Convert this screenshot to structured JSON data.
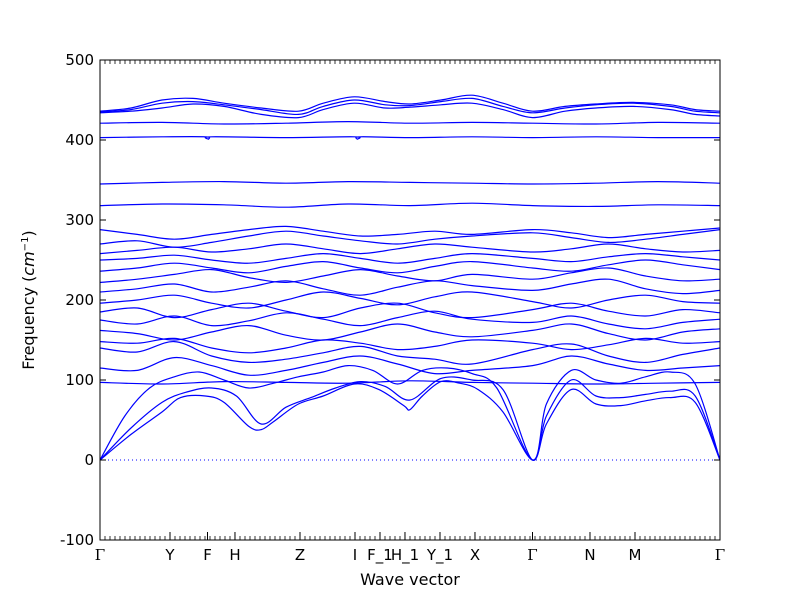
{
  "chart_data": {
    "type": "line",
    "title": "",
    "xlabel": "Wave vector",
    "ylabel_text": "Frequency (",
    "ylabel_unit": "cm",
    "ylabel_exp": "−1",
    "ylabel_close": ")",
    "ylim": [
      -100,
      500
    ],
    "yticks": [
      -100,
      0,
      100,
      200,
      300,
      400,
      500
    ],
    "xlim": [
      0,
      1
    ],
    "xticks": [
      {
        "label": "Γ",
        "x": 0.0
      },
      {
        "label": "Y",
        "x": 0.1129
      },
      {
        "label": "F",
        "x": 0.1734
      },
      {
        "label": "H",
        "x": 0.2177
      },
      {
        "label": "Z",
        "x": 0.3226
      },
      {
        "label": "I",
        "x": 0.4113
      },
      {
        "label": "F_1",
        "x": 0.4516
      },
      {
        "label": "H_1",
        "x": 0.4919
      },
      {
        "label": "Y_1",
        "x": 0.5484
      },
      {
        "label": "X",
        "x": 0.6048
      },
      {
        "label": "Γ",
        "x": 0.6976
      },
      {
        "label": "N",
        "x": 0.7903
      },
      {
        "label": "M",
        "x": 0.8629
      },
      {
        "label": "Γ",
        "x": 1.0
      }
    ],
    "zero_line": {
      "y": 0,
      "style": "dotted"
    },
    "line_color": "#0000ff",
    "series": [
      {
        "x": [
          0,
          0.05,
          0.1,
          0.13,
          0.17,
          0.2,
          0.24,
          0.26,
          0.28,
          0.32,
          0.36,
          0.41,
          0.45,
          0.49,
          0.5,
          0.52,
          0.55,
          0.58,
          0.61,
          0.65,
          0.6976,
          0.72,
          0.76,
          0.8,
          0.84,
          0.88,
          0.92,
          0.96,
          1.0
        ],
        "y": [
          0,
          32,
          60,
          78,
          80,
          72,
          42,
          38,
          48,
          70,
          80,
          95,
          88,
          68,
          63,
          80,
          98,
          96,
          88,
          60,
          0,
          45,
          88,
          70,
          68,
          74,
          78,
          72,
          0
        ]
      },
      {
        "x": [
          0,
          0.05,
          0.1,
          0.14,
          0.18,
          0.22,
          0.26,
          0.3,
          0.34,
          0.38,
          0.42,
          0.46,
          0.5,
          0.55,
          0.6,
          0.65,
          0.6976,
          0.72,
          0.76,
          0.8,
          0.84,
          0.88,
          0.92,
          0.96,
          1.0
        ],
        "y": [
          0,
          40,
          72,
          85,
          90,
          80,
          45,
          66,
          78,
          90,
          98,
          92,
          75,
          102,
          100,
          88,
          0,
          55,
          100,
          80,
          78,
          82,
          86,
          80,
          0
        ]
      },
      {
        "x": [
          0,
          0.04,
          0.08,
          0.12,
          0.16,
          0.2,
          0.24,
          0.28,
          0.32,
          0.36,
          0.4,
          0.44,
          0.48,
          0.52,
          0.56,
          0.6,
          0.64,
          0.6976,
          0.72,
          0.76,
          0.8,
          0.84,
          0.88,
          0.92,
          0.96,
          1.0
        ],
        "y": [
          0,
          55,
          90,
          104,
          110,
          100,
          90,
          96,
          104,
          110,
          118,
          112,
          95,
          112,
          115,
          108,
          90,
          0,
          70,
          112,
          100,
          96,
          104,
          110,
          95,
          0
        ]
      },
      {
        "x": [
          0,
          0.1,
          0.2,
          0.3,
          0.4,
          0.5,
          0.6,
          0.6976,
          0.8,
          0.9,
          1.0
        ],
        "y": [
          97,
          95,
          98,
          97,
          96,
          99,
          97,
          96,
          95,
          96,
          97
        ]
      },
      {
        "x": [
          0,
          0.06,
          0.12,
          0.18,
          0.24,
          0.3,
          0.36,
          0.42,
          0.48,
          0.54,
          0.6,
          0.6976,
          0.76,
          0.82,
          0.88,
          0.94,
          1.0
        ],
        "y": [
          115,
          112,
          128,
          118,
          106,
          112,
          122,
          130,
          120,
          108,
          112,
          118,
          130,
          120,
          112,
          115,
          118
        ]
      },
      {
        "x": [
          0,
          0.06,
          0.12,
          0.18,
          0.24,
          0.3,
          0.36,
          0.42,
          0.48,
          0.54,
          0.6,
          0.6976,
          0.76,
          0.82,
          0.88,
          0.94,
          1.0
        ],
        "y": [
          140,
          135,
          148,
          130,
          122,
          126,
          134,
          142,
          130,
          126,
          120,
          138,
          145,
          130,
          122,
          132,
          140
        ]
      },
      {
        "x": [
          0,
          0.06,
          0.12,
          0.18,
          0.24,
          0.3,
          0.36,
          0.42,
          0.48,
          0.54,
          0.6,
          0.6976,
          0.76,
          0.82,
          0.88,
          0.94,
          1.0
        ],
        "y": [
          148,
          146,
          152,
          140,
          134,
          140,
          150,
          146,
          138,
          142,
          150,
          146,
          138,
          144,
          152,
          146,
          148
        ]
      },
      {
        "x": [
          0,
          0.06,
          0.12,
          0.18,
          0.24,
          0.3,
          0.36,
          0.42,
          0.48,
          0.54,
          0.6,
          0.6976,
          0.76,
          0.82,
          0.88,
          0.94,
          1.0
        ],
        "y": [
          162,
          158,
          150,
          160,
          168,
          156,
          150,
          160,
          170,
          160,
          154,
          162,
          170,
          158,
          150,
          160,
          164
        ]
      },
      {
        "x": [
          0,
          0.06,
          0.12,
          0.18,
          0.24,
          0.3,
          0.36,
          0.42,
          0.48,
          0.54,
          0.6,
          0.6976,
          0.76,
          0.82,
          0.88,
          0.94,
          1.0
        ],
        "y": [
          175,
          170,
          180,
          168,
          174,
          184,
          176,
          168,
          178,
          186,
          176,
          172,
          180,
          170,
          164,
          172,
          176
        ]
      },
      {
        "x": [
          0,
          0.06,
          0.12,
          0.18,
          0.24,
          0.3,
          0.36,
          0.42,
          0.48,
          0.54,
          0.6,
          0.6976,
          0.76,
          0.82,
          0.88,
          0.94,
          1.0
        ],
        "y": [
          185,
          190,
          178,
          188,
          196,
          186,
          178,
          190,
          196,
          184,
          178,
          188,
          196,
          186,
          180,
          188,
          184
        ]
      },
      {
        "x": [
          0,
          0.06,
          0.12,
          0.18,
          0.24,
          0.3,
          0.36,
          0.42,
          0.48,
          0.54,
          0.6,
          0.6976,
          0.76,
          0.82,
          0.88,
          0.94,
          1.0
        ],
        "y": [
          196,
          200,
          206,
          196,
          190,
          200,
          210,
          202,
          194,
          204,
          210,
          198,
          190,
          200,
          206,
          198,
          196
        ]
      },
      {
        "x": [
          0,
          0.06,
          0.12,
          0.18,
          0.24,
          0.3,
          0.36,
          0.42,
          0.48,
          0.54,
          0.6,
          0.6976,
          0.76,
          0.82,
          0.88,
          0.94,
          1.0
        ],
        "y": [
          210,
          214,
          220,
          210,
          216,
          224,
          214,
          206,
          216,
          224,
          218,
          212,
          220,
          226,
          214,
          208,
          212
        ]
      },
      {
        "x": [
          0,
          0.06,
          0.12,
          0.18,
          0.24,
          0.3,
          0.36,
          0.42,
          0.48,
          0.54,
          0.6,
          0.6976,
          0.76,
          0.82,
          0.88,
          0.94,
          1.0
        ],
        "y": [
          222,
          226,
          232,
          238,
          228,
          222,
          230,
          238,
          230,
          224,
          232,
          226,
          234,
          240,
          230,
          224,
          226
        ]
      },
      {
        "x": [
          0,
          0.06,
          0.12,
          0.18,
          0.24,
          0.3,
          0.36,
          0.42,
          0.48,
          0.54,
          0.6,
          0.6976,
          0.76,
          0.82,
          0.88,
          0.94,
          1.0
        ],
        "y": [
          236,
          240,
          246,
          240,
          234,
          242,
          248,
          240,
          234,
          242,
          248,
          240,
          236,
          244,
          250,
          244,
          238
        ]
      },
      {
        "x": [
          0,
          0.06,
          0.12,
          0.18,
          0.24,
          0.3,
          0.36,
          0.42,
          0.48,
          0.54,
          0.6,
          0.6976,
          0.76,
          0.82,
          0.88,
          0.94,
          1.0
        ],
        "y": [
          250,
          252,
          256,
          250,
          246,
          252,
          258,
          252,
          246,
          252,
          258,
          252,
          248,
          254,
          258,
          254,
          250
        ]
      },
      {
        "x": [
          0,
          0.06,
          0.12,
          0.18,
          0.24,
          0.3,
          0.36,
          0.42,
          0.48,
          0.54,
          0.6,
          0.6976,
          0.76,
          0.82,
          0.88,
          0.94,
          1.0
        ],
        "y": [
          258,
          262,
          266,
          260,
          264,
          270,
          264,
          258,
          264,
          270,
          266,
          260,
          264,
          270,
          264,
          260,
          262
        ]
      },
      {
        "x": [
          0,
          0.06,
          0.12,
          0.18,
          0.24,
          0.3,
          0.36,
          0.42,
          0.48,
          0.54,
          0.6,
          0.6976,
          0.76,
          0.82,
          0.88,
          0.94,
          1.0
        ],
        "y": [
          270,
          274,
          266,
          272,
          280,
          286,
          280,
          274,
          270,
          276,
          280,
          284,
          278,
          272,
          276,
          282,
          288
        ]
      },
      {
        "x": [
          0,
          0.06,
          0.12,
          0.18,
          0.24,
          0.3,
          0.36,
          0.42,
          0.48,
          0.54,
          0.6,
          0.6976,
          0.76,
          0.82,
          0.88,
          0.94,
          1.0
        ],
        "y": [
          288,
          282,
          276,
          282,
          288,
          292,
          286,
          280,
          282,
          286,
          282,
          288,
          284,
          278,
          282,
          286,
          290
        ]
      },
      {
        "x": [
          0,
          0.1,
          0.2,
          0.3,
          0.4,
          0.5,
          0.6,
          0.6976,
          0.8,
          0.9,
          1.0
        ],
        "y": [
          318,
          320,
          319,
          316,
          320,
          318,
          321,
          318,
          317,
          319,
          318
        ]
      },
      {
        "x": [
          0,
          0.1,
          0.2,
          0.3,
          0.4,
          0.5,
          0.6,
          0.6976,
          0.8,
          0.9,
          1.0
        ],
        "y": [
          345,
          347,
          348,
          346,
          348,
          347,
          346,
          345,
          346,
          348,
          346
        ]
      },
      {
        "x": [
          0,
          0.1,
          0.17,
          0.175,
          0.18,
          0.3,
          0.41,
          0.415,
          0.42,
          0.5,
          0.6,
          0.6976,
          0.8,
          0.9,
          1.0
        ],
        "y": [
          403,
          404,
          404,
          401,
          404,
          403,
          404,
          401,
          404,
          403,
          404,
          403,
          404,
          403,
          403
        ]
      },
      {
        "x": [
          0,
          0.1,
          0.2,
          0.3,
          0.4,
          0.5,
          0.6,
          0.6976,
          0.8,
          0.9,
          1.0
        ],
        "y": [
          421,
          422,
          420,
          421,
          423,
          421,
          422,
          421,
          420,
          422,
          421
        ]
      },
      {
        "x": [
          0,
          0.05,
          0.1,
          0.15,
          0.2,
          0.26,
          0.32,
          0.36,
          0.41,
          0.46,
          0.5,
          0.55,
          0.6,
          0.65,
          0.6976,
          0.75,
          0.8,
          0.86,
          0.92,
          0.96,
          1.0
        ],
        "y": [
          434,
          436,
          440,
          445,
          442,
          432,
          428,
          438,
          446,
          440,
          441,
          444,
          446,
          438,
          428,
          436,
          440,
          442,
          438,
          432,
          430
        ]
      },
      {
        "x": [
          0,
          0.05,
          0.1,
          0.15,
          0.2,
          0.26,
          0.32,
          0.36,
          0.41,
          0.46,
          0.5,
          0.55,
          0.6,
          0.65,
          0.6976,
          0.75,
          0.8,
          0.86,
          0.92,
          0.96,
          1.0
        ],
        "y": [
          435,
          438,
          446,
          448,
          444,
          438,
          432,
          442,
          450,
          444,
          443,
          448,
          452,
          442,
          434,
          440,
          444,
          446,
          442,
          436,
          434
        ]
      },
      {
        "x": [
          0,
          0.05,
          0.1,
          0.15,
          0.2,
          0.26,
          0.32,
          0.36,
          0.41,
          0.46,
          0.5,
          0.55,
          0.6,
          0.65,
          0.6976,
          0.75,
          0.8,
          0.86,
          0.92,
          0.96,
          1.0
        ],
        "y": [
          436,
          440,
          450,
          452,
          446,
          440,
          436,
          446,
          454,
          448,
          445,
          450,
          456,
          446,
          436,
          442,
          445,
          447,
          444,
          438,
          436
        ]
      }
    ]
  }
}
